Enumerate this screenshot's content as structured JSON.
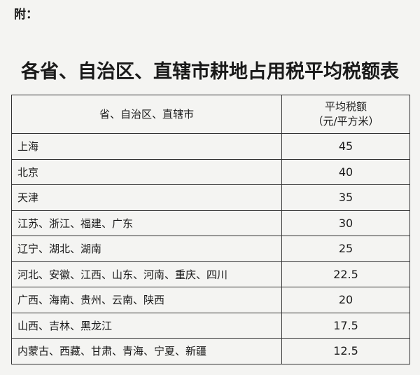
{
  "attachment_label": "附：",
  "title": "各省、自治区、直辖市耕地占用税平均税额表",
  "table": {
    "headers": [
      "省、自治区、直辖市",
      "平均税额",
      "（元/平方米）"
    ],
    "rows": [
      {
        "region": "上海",
        "amount": "45"
      },
      {
        "region": "北京",
        "amount": "40"
      },
      {
        "region": "天津",
        "amount": "35"
      },
      {
        "region": "江苏、浙江、福建、广东",
        "amount": "30"
      },
      {
        "region": "辽宁、湖北、湖南",
        "amount": "25"
      },
      {
        "region": "河北、安徽、江西、山东、河南、重庆、四川",
        "amount": "22.5"
      },
      {
        "region": "广西、海南、贵州、云南、陕西",
        "amount": "20"
      },
      {
        "region": "山西、吉林、黑龙江",
        "amount": "17.5"
      },
      {
        "region": "内蒙古、西藏、甘肃、青海、宁夏、新疆",
        "amount": "12.5"
      }
    ]
  }
}
